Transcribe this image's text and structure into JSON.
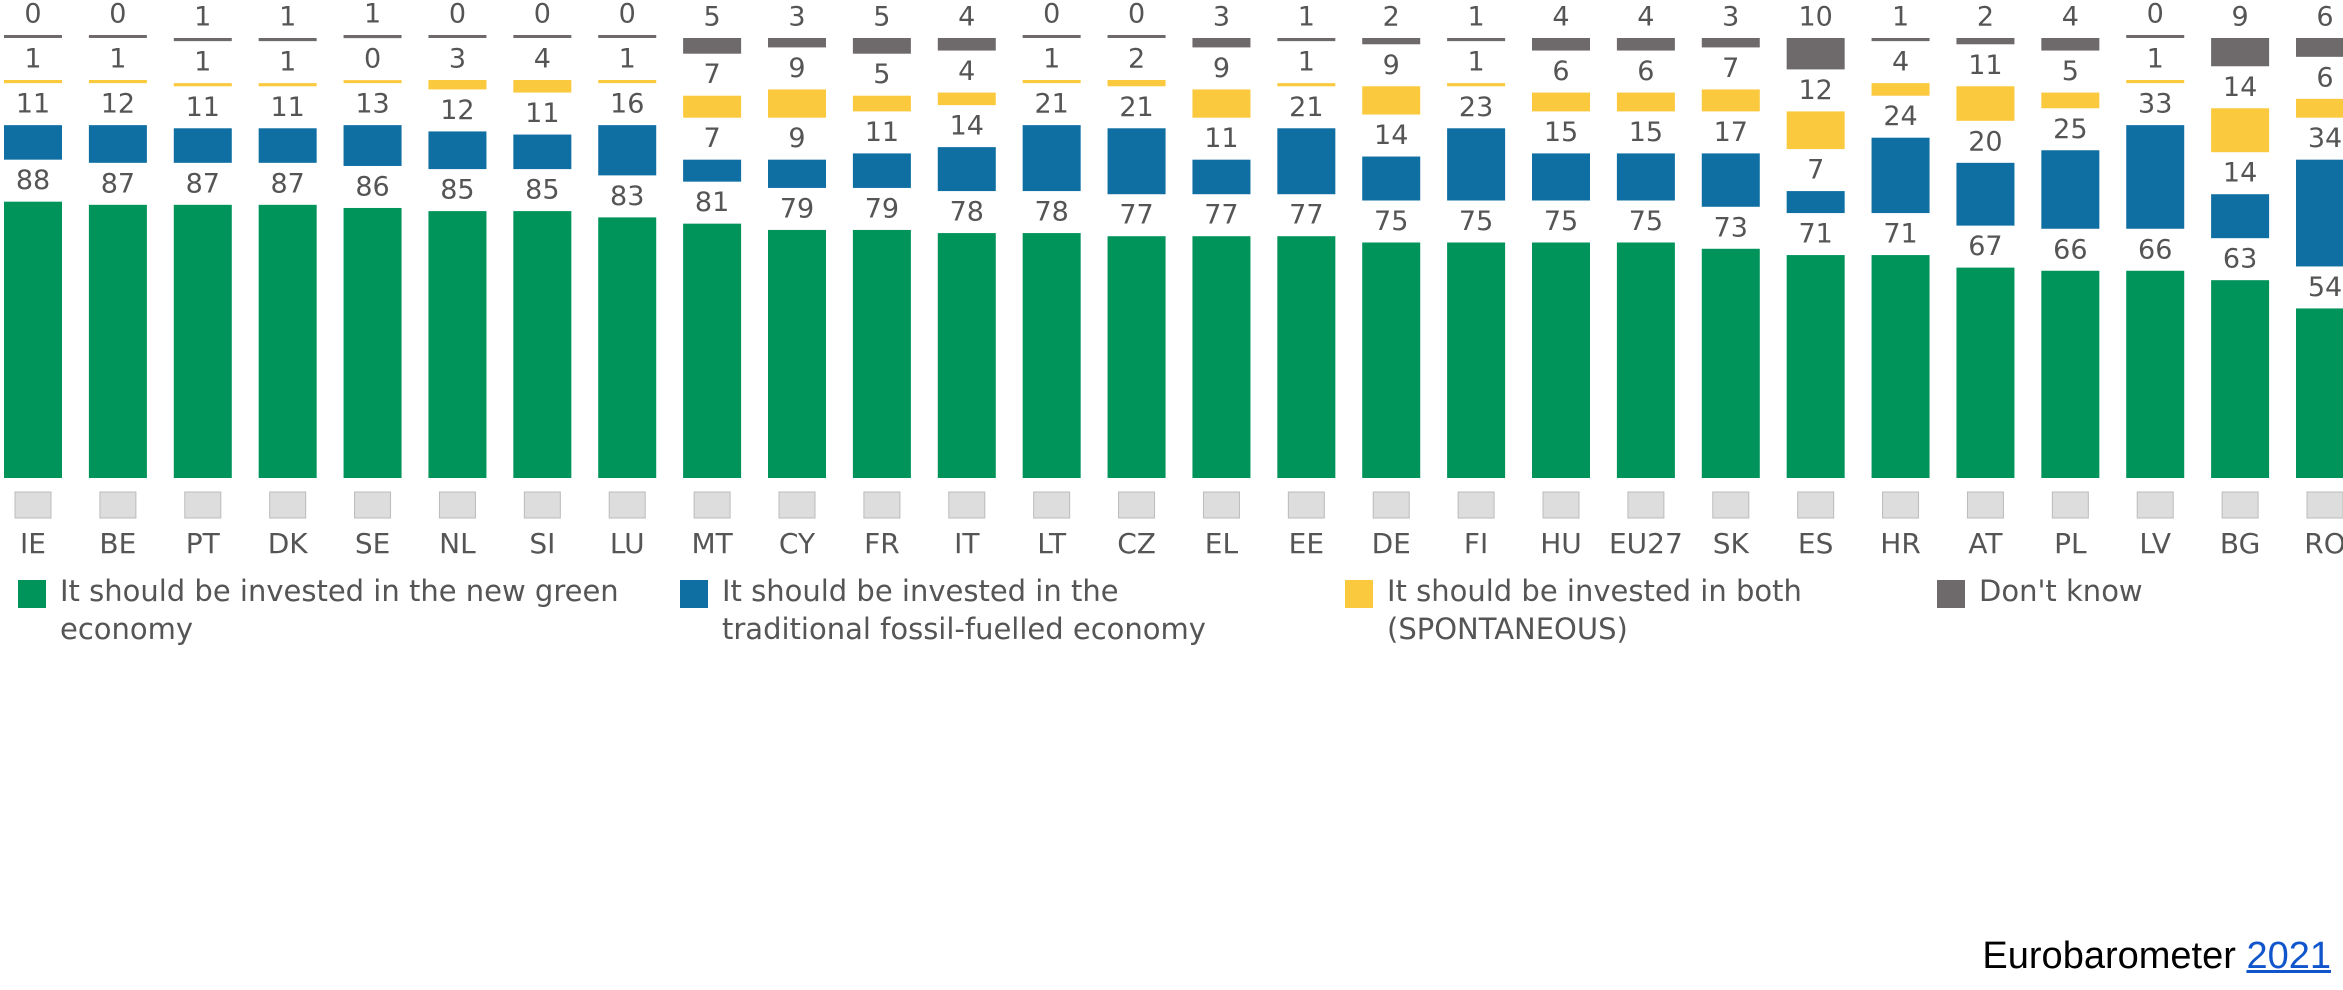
{
  "chart_data": {
    "type": "stacked_bar_gapped",
    "categories": [
      "IE",
      "BE",
      "PT",
      "DK",
      "SE",
      "NL",
      "SI",
      "LU",
      "MT",
      "CY",
      "FR",
      "IT",
      "LT",
      "CZ",
      "EL",
      "EE",
      "DE",
      "FI",
      "HU",
      "EU27",
      "SK",
      "ES",
      "HR",
      "AT",
      "PL",
      "LV",
      "BG",
      "RO"
    ],
    "series": [
      {
        "name": "It should be invested in the new green economy",
        "color": "#00935a",
        "values": [
          88,
          87,
          87,
          87,
          86,
          85,
          85,
          83,
          81,
          79,
          79,
          78,
          78,
          77,
          77,
          77,
          75,
          75,
          75,
          75,
          73,
          71,
          71,
          67,
          66,
          66,
          63,
          54
        ]
      },
      {
        "name": "It should be invested in the traditional fossil-fuelled economy",
        "color": "#0f6fa3",
        "values": [
          11,
          12,
          11,
          11,
          13,
          12,
          11,
          16,
          7,
          9,
          11,
          14,
          21,
          21,
          11,
          21,
          14,
          23,
          15,
          15,
          17,
          7,
          24,
          20,
          25,
          33,
          14,
          34
        ]
      },
      {
        "name": "It should be invested in both (SPONTANEOUS)",
        "color": "#fbc93d",
        "values": [
          1,
          1,
          1,
          1,
          0,
          3,
          4,
          1,
          7,
          9,
          5,
          4,
          1,
          2,
          9,
          1,
          9,
          1,
          6,
          6,
          7,
          12,
          4,
          11,
          5,
          1,
          14,
          6
        ]
      },
      {
        "name": "Don't know",
        "color": "#6e6a6c",
        "values": [
          0,
          0,
          1,
          1,
          1,
          0,
          0,
          0,
          5,
          3,
          5,
          4,
          0,
          0,
          3,
          1,
          2,
          1,
          4,
          4,
          3,
          10,
          1,
          2,
          4,
          0,
          9,
          6
        ]
      }
    ],
    "source": "Eurobarometer",
    "source_link": "2021"
  }
}
